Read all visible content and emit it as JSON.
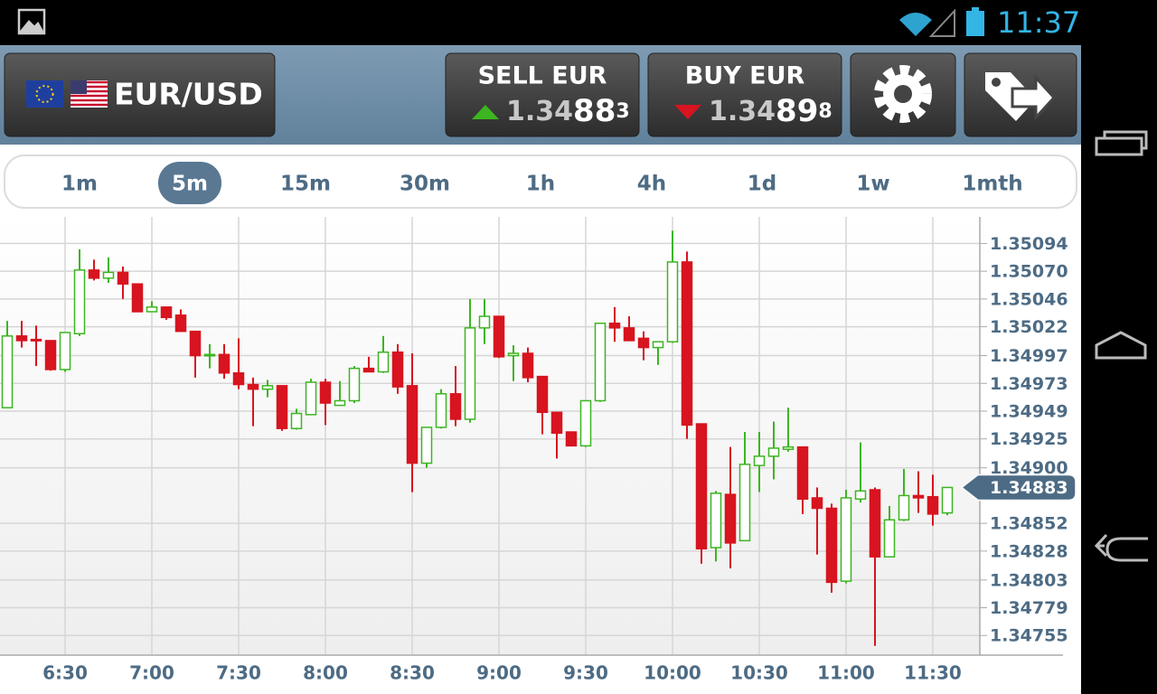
{
  "status_bar": {
    "time": "11:37"
  },
  "header": {
    "pair": "EUR/USD",
    "sell": {
      "label": "SELL EUR",
      "price_prefix": "1.34",
      "price_pips": "88",
      "price_fraction": "3"
    },
    "buy": {
      "label": "BUY EUR",
      "price_prefix": "1.34",
      "price_pips": "89",
      "price_fraction": "8"
    }
  },
  "tabs": {
    "items": [
      "1m",
      "5m",
      "15m",
      "30m",
      "1h",
      "4h",
      "1d",
      "1w",
      "1mth"
    ],
    "selected": "5m"
  },
  "chart": {
    "type": "candlestick",
    "categories": [
      null,
      null,
      null,
      null,
      "6:30",
      null,
      null,
      null,
      null,
      null,
      "7:00",
      null,
      null,
      null,
      null,
      null,
      "7:30",
      null,
      null,
      null,
      null,
      null,
      "8:00",
      null,
      null,
      null,
      null,
      null,
      "8:30",
      null,
      null,
      null,
      null,
      null,
      "9:00",
      null,
      null,
      null,
      null,
      null,
      "9:30",
      null,
      null,
      null,
      null,
      null,
      "10:00",
      null,
      null,
      null,
      null,
      null,
      "10:30",
      null,
      null,
      null,
      null,
      null,
      "11:00",
      null,
      null,
      null,
      null,
      null,
      "11:30",
      null
    ],
    "open": [
      1.34952,
      1.35014,
      1.35011,
      1.3501,
      1.34985,
      1.35016,
      1.35071,
      1.35064,
      1.35069,
      1.35059,
      1.35035,
      1.35039,
      1.35032,
      1.35018,
      1.34997,
      1.34998,
      1.34982,
      1.34972,
      1.34968,
      1.34971,
      1.34934,
      1.34946,
      1.34974,
      1.34954,
      1.34958,
      1.34986,
      1.34983,
      1.35,
      1.34971,
      1.34904,
      1.34935,
      1.34964,
      1.34942,
      1.35021,
      1.35031,
      1.34997,
      1.34999,
      1.34979,
      1.34948,
      1.34931,
      1.34919,
      1.34958,
      1.35025,
      1.35021,
      1.35012,
      1.35004,
      1.35009,
      1.35078,
      1.34938,
      1.34831,
      1.34877,
      1.34837,
      1.34902,
      1.3491,
      1.34916,
      1.34918,
      1.34874,
      1.34865,
      1.34802,
      1.34873,
      1.34881,
      1.34823,
      1.34855,
      1.34876,
      1.34875,
      1.34861
    ],
    "high": [
      1.35027,
      1.35027,
      1.35023,
      1.3501,
      1.35017,
      1.35089,
      1.3508,
      1.35082,
      1.35074,
      1.35059,
      1.35044,
      1.35039,
      1.35037,
      1.35018,
      1.35007,
      1.35007,
      1.35012,
      1.34978,
      1.34976,
      1.34971,
      1.34951,
      1.34977,
      1.34977,
      1.34975,
      1.34988,
      1.34996,
      1.35014,
      1.35007,
      1.34999,
      1.34935,
      1.34968,
      1.34988,
      1.35046,
      1.35046,
      1.35031,
      1.35006,
      1.35004,
      1.34979,
      1.34948,
      1.34931,
      1.34958,
      1.35025,
      1.35039,
      1.35031,
      1.35018,
      1.35009,
      1.35105,
      1.35087,
      1.34938,
      1.3488,
      1.34918,
      1.34931,
      1.34931,
      1.3494,
      1.34952,
      1.34918,
      1.34883,
      1.34869,
      1.34881,
      1.34922,
      1.34883,
      1.34867,
      1.34899,
      1.34897,
      1.34894,
      1.34883
    ],
    "low": [
      1.34952,
      1.35004,
      1.34988,
      1.34984,
      1.34983,
      1.35014,
      1.35062,
      1.3506,
      1.35046,
      1.35035,
      1.35035,
      1.35028,
      1.35018,
      1.34978,
      1.34986,
      1.34977,
      1.34968,
      1.34936,
      1.34961,
      1.34932,
      1.34933,
      1.34946,
      1.34937,
      1.34954,
      1.34956,
      1.34983,
      1.34982,
      1.34964,
      1.34879,
      1.349,
      1.34934,
      1.34936,
      1.34939,
      1.35007,
      1.34995,
      1.34975,
      1.34974,
      1.34929,
      1.34908,
      1.34919,
      1.34918,
      1.34957,
      1.35009,
      1.3501,
      1.34993,
      1.34989,
      1.35008,
      1.34925,
      1.34817,
      1.34819,
      1.34813,
      1.34837,
      1.34879,
      1.3489,
      1.34914,
      1.3486,
      1.34825,
      1.34792,
      1.348,
      1.3487,
      1.34746,
      1.34823,
      1.34854,
      1.34861,
      1.3485,
      1.34859
    ],
    "close": [
      1.35014,
      1.3501,
      1.3501,
      1.34985,
      1.35017,
      1.35071,
      1.35064,
      1.35069,
      1.35059,
      1.35035,
      1.35039,
      1.3503,
      1.35018,
      1.34997,
      1.34998,
      1.34982,
      1.34972,
      1.34968,
      1.34971,
      1.34934,
      1.34947,
      1.34974,
      1.34956,
      1.34958,
      1.34986,
      1.34983,
      1.35,
      1.3497,
      1.34904,
      1.34935,
      1.34964,
      1.34942,
      1.35021,
      1.35031,
      1.34996,
      1.34999,
      1.34978,
      1.34948,
      1.3493,
      1.34919,
      1.34958,
      1.35025,
      1.35021,
      1.3501,
      1.35004,
      1.35009,
      1.35078,
      1.34937,
      1.3483,
      1.34878,
      1.34835,
      1.34903,
      1.3491,
      1.34917,
      1.34918,
      1.34873,
      1.34865,
      1.34801,
      1.34874,
      1.3488,
      1.34823,
      1.34855,
      1.34876,
      1.34874,
      1.3486,
      1.34883
    ],
    "up_color": "#3cb521",
    "down_color": "#d7141f",
    "ylim": [
      1.34738,
      1.35117
    ],
    "yticks": [
      1.35094,
      {
        "value": 1.3507,
        "label": "1.35070"
      },
      1.35046,
      1.35022,
      1.34997,
      1.34973,
      1.34949,
      1.34925,
      {
        "value": 1.349,
        "label": "1.34900"
      },
      1.34852,
      1.34828,
      1.34803,
      1.34779,
      1.34755
    ],
    "grid": true,
    "current_price": 1.34883
  }
}
